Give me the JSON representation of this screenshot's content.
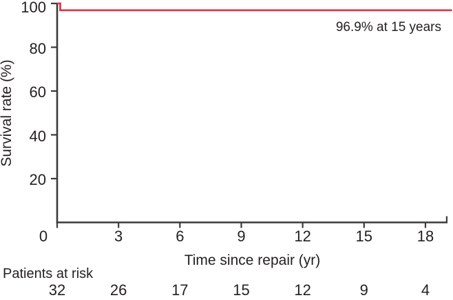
{
  "colors": {
    "curve": "#de3746",
    "axis": "#3a3a3c",
    "text": "#231f20",
    "background": "#ffffff"
  },
  "chart_data": {
    "type": "line",
    "subtype": "kaplan-meier-step-curve",
    "title": "",
    "xlabel": "Time since repair (yr)",
    "ylabel": "Survival rate (%)",
    "xlim": [
      0,
      19.3
    ],
    "ylim": [
      0,
      100
    ],
    "x_ticks": [
      0,
      3,
      6,
      9,
      12,
      15,
      18
    ],
    "y_ticks": [
      20,
      40,
      60,
      80,
      100
    ],
    "grid": false,
    "legend": "none",
    "series": [
      {
        "name": "survival-curve",
        "color": "#de3746",
        "step_points": [
          [
            0,
            100
          ],
          [
            0.15,
            100
          ],
          [
            0.15,
            96.9
          ],
          [
            19.3,
            96.9
          ]
        ]
      }
    ],
    "annotation": {
      "text": "96.9% at 15 years",
      "position": "top-right"
    },
    "at_risk": {
      "label": "Patients at risk",
      "times": [
        0,
        3,
        6,
        9,
        12,
        15,
        18
      ],
      "counts": [
        32,
        26,
        17,
        15,
        12,
        9,
        4
      ]
    }
  }
}
